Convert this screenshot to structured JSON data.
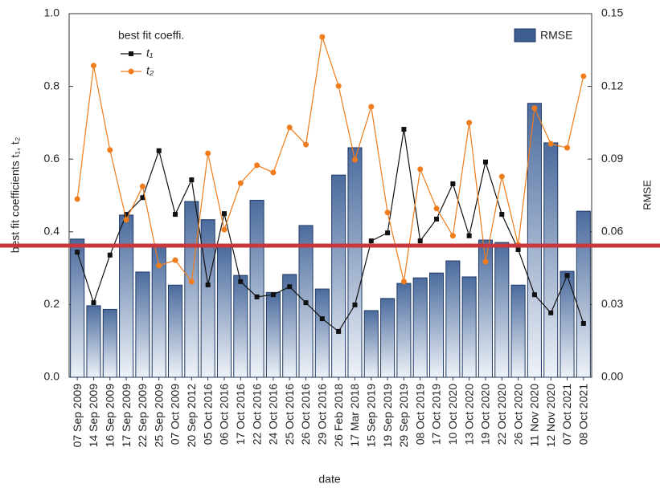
{
  "chart_data": {
    "type": "bar_line",
    "x_label": "date",
    "y_label": "best fit coefficients t₁, t₂",
    "y2_label": "RMSE",
    "legend_title": "best fit coeffi.",
    "categories": [
      "07 Sep 2009",
      "14 Sep 2009",
      "16 Sep 2009",
      "17 Sep 2009",
      "22 Sep 2009",
      "25 Sep 2009",
      "07 Oct 2009",
      "20 Sep 2012",
      "05 Oct 2016",
      "06 Oct 2016",
      "17 Oct 2016",
      "22 Oct 2016",
      "24 Oct 2016",
      "25 Oct 2016",
      "26 Oct 2016",
      "29 Oct 2016",
      "26 Feb 2018",
      "17 Mar 2018",
      "15 Sep 2019",
      "19 Sep 2019",
      "29 Sep 2019",
      "08 Oct 2019",
      "17 Oct 2019",
      "10 Oct 2020",
      "13 Oct 2020",
      "19 Oct 2020",
      "22 Oct 2020",
      "26 Oct 2020",
      "11 Nov 2020",
      "12 Nov 2020",
      "07 Oct 2021",
      "08 Oct 2021"
    ],
    "series": [
      {
        "name": "RMSE",
        "type": "bar",
        "axis": "y2",
        "color": "#3d5d8f",
        "values": [
          0.057,
          0.0295,
          0.028,
          0.0669,
          0.0434,
          0.054,
          0.038,
          0.0725,
          0.065,
          0.054,
          0.042,
          0.073,
          0.035,
          0.0424,
          0.0626,
          0.0364,
          0.0834,
          0.0947,
          0.0275,
          0.0325,
          0.0387,
          0.041,
          0.043,
          0.048,
          0.0414,
          0.0566,
          0.0556,
          0.038,
          0.113,
          0.0967,
          0.0437,
          0.0685
        ]
      },
      {
        "name": "t₁",
        "type": "line",
        "marker": "square",
        "color": "#111111",
        "values": [
          0.344,
          0.205,
          0.336,
          0.448,
          0.494,
          0.623,
          0.448,
          0.543,
          0.254,
          0.45,
          0.263,
          0.221,
          0.227,
          0.249,
          0.205,
          0.161,
          0.126,
          0.199,
          0.375,
          0.397,
          0.682,
          0.375,
          0.435,
          0.532,
          0.389,
          0.592,
          0.448,
          0.351,
          0.227,
          0.177,
          0.28,
          0.148
        ]
      },
      {
        "name": "t₂",
        "type": "line",
        "marker": "circle",
        "color": "#f07c1c",
        "values": [
          0.49,
          0.857,
          0.625,
          0.433,
          0.525,
          0.307,
          0.322,
          0.263,
          0.616,
          0.406,
          0.534,
          0.583,
          0.563,
          0.687,
          0.64,
          0.936,
          0.801,
          0.598,
          0.744,
          0.453,
          0.263,
          0.572,
          0.464,
          0.389,
          0.7,
          0.318,
          0.552,
          0.364,
          0.74,
          0.642,
          0.631,
          0.828
        ]
      }
    ],
    "ylim": [
      0,
      1
    ],
    "yticks": [
      {
        "value": 0,
        "label": "0.0"
      },
      0.2,
      0.4,
      0.6,
      0.8,
      {
        "value": 1,
        "label": "1.0"
      }
    ],
    "y2lim": [
      0,
      0.15
    ],
    "y2ticks": [
      {
        "value": 0,
        "label": "0.00"
      },
      {
        "value": 0.03,
        "label": "0.03"
      },
      {
        "value": 0.06,
        "label": "0.06"
      },
      {
        "value": 0.09,
        "label": "0.09"
      },
      {
        "value": 0.12,
        "label": "0.12"
      },
      {
        "value": 0.15,
        "label": "0.15"
      }
    ],
    "reference_line": {
      "value": 0.362,
      "color": "#c8373b"
    },
    "grid": false
  }
}
